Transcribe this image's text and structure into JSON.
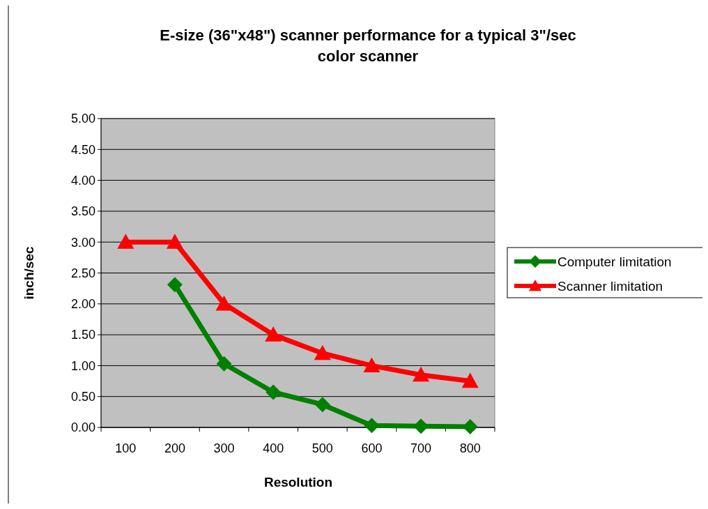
{
  "chart_data": {
    "type": "line",
    "title": "E-size (36\"x48\") scanner performance for a typical 3\"/sec color scanner",
    "xlabel": "Resolution",
    "ylabel": "inch/sec",
    "categories": [
      "100",
      "200",
      "300",
      "400",
      "500",
      "600",
      "700",
      "800"
    ],
    "series": [
      {
        "name": "Computer limitation",
        "color": "#008000",
        "marker": "diamond",
        "values": [
          null,
          2.31,
          1.03,
          0.57,
          0.37,
          0.03,
          0.02,
          0.01
        ]
      },
      {
        "name": "Scanner limitation",
        "color": "#ff0000",
        "marker": "triangle",
        "values": [
          3,
          3,
          2,
          1.5,
          1.2,
          1,
          0.85,
          0.75
        ]
      }
    ],
    "ylim": [
      0,
      5
    ],
    "yticks": [
      {
        "value": 0,
        "label": "0.00"
      },
      {
        "value": 0.5,
        "label": "0.50"
      },
      {
        "value": 1,
        "label": "1.00"
      },
      {
        "value": 1.5,
        "label": "1.50"
      },
      {
        "value": 2,
        "label": "2.00"
      },
      {
        "value": 2.5,
        "label": "2.50"
      },
      {
        "value": 3,
        "label": "3.00"
      },
      {
        "value": 3.5,
        "label": "3.50"
      },
      {
        "value": 4,
        "label": "4.00"
      },
      {
        "value": 4.5,
        "label": "4.50"
      },
      {
        "value": 5,
        "label": "5.00"
      }
    ],
    "grid": "y",
    "legend": "right",
    "line_style": "solid"
  }
}
